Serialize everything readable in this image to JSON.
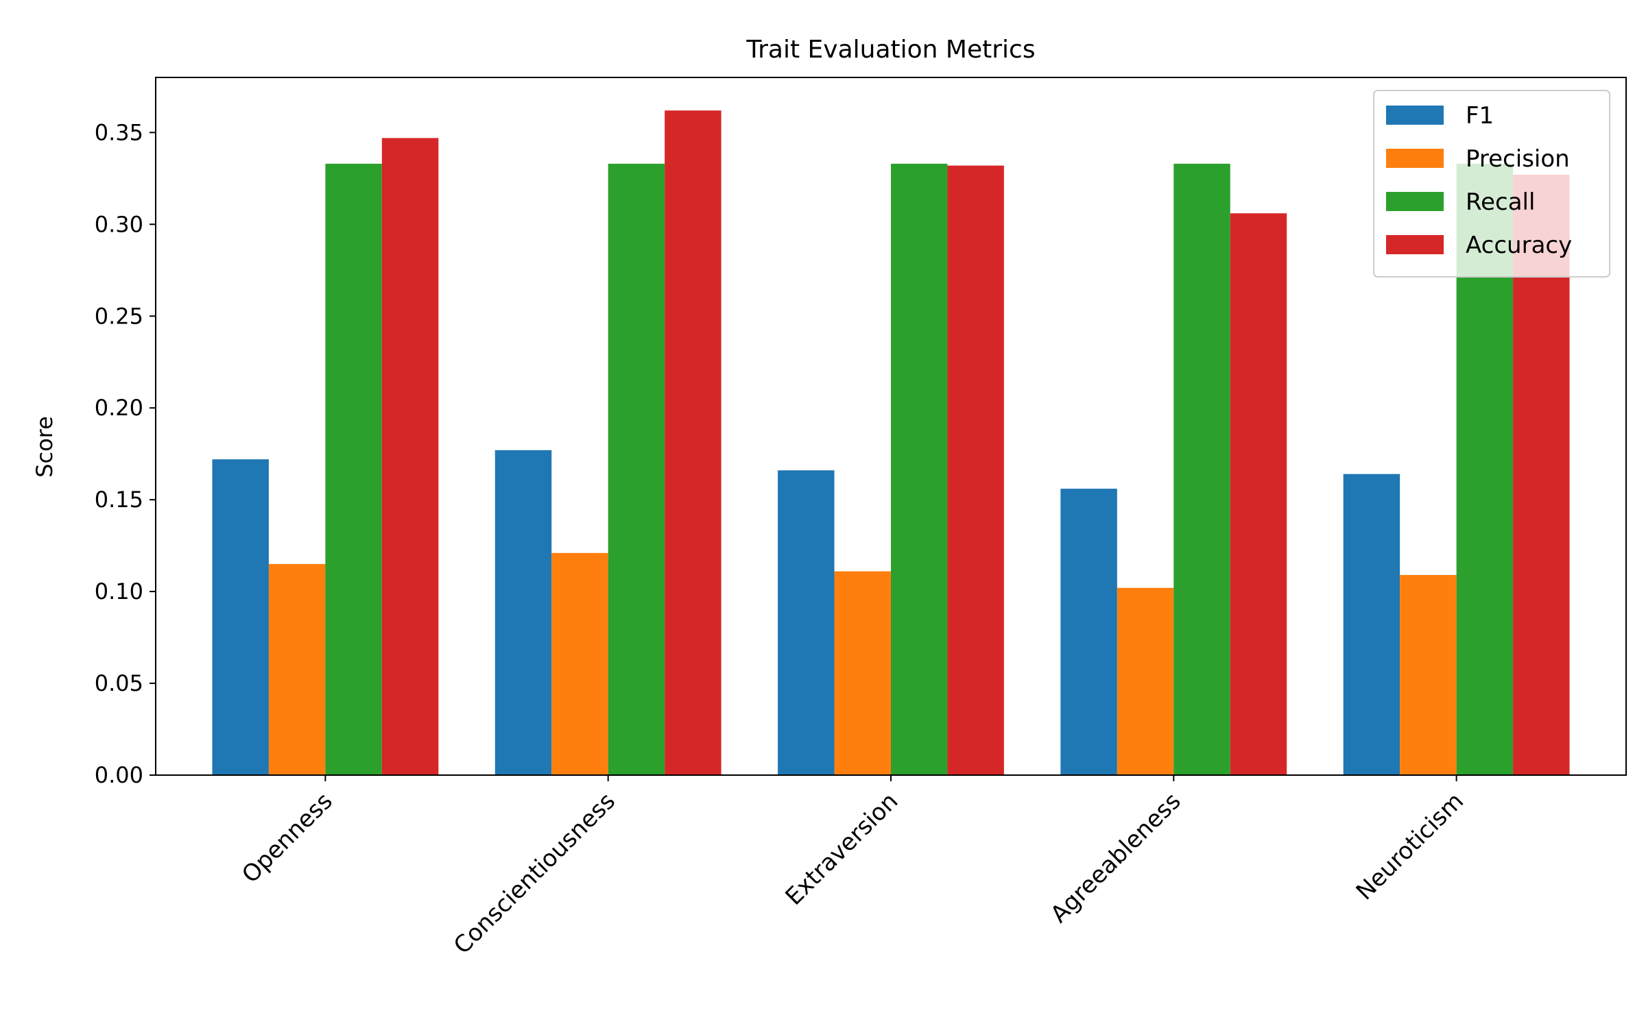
{
  "chart_data": {
    "type": "bar",
    "title": "Trait Evaluation Metrics",
    "xlabel": "",
    "ylabel": "Score",
    "categories": [
      "Openness",
      "Conscientiousness",
      "Extraversion",
      "Agreeableness",
      "Neuroticism"
    ],
    "series": [
      {
        "name": "F1",
        "color": "#1f77b4",
        "values": [
          0.172,
          0.177,
          0.166,
          0.156,
          0.164
        ]
      },
      {
        "name": "Precision",
        "color": "#ff7f0e",
        "values": [
          0.115,
          0.121,
          0.111,
          0.102,
          0.109
        ]
      },
      {
        "name": "Recall",
        "color": "#2ca02c",
        "values": [
          0.333,
          0.333,
          0.333,
          0.333,
          0.333
        ]
      },
      {
        "name": "Accuracy",
        "color": "#d62728",
        "values": [
          0.347,
          0.362,
          0.332,
          0.306,
          0.327
        ]
      }
    ],
    "ylim": [
      0,
      0.38
    ],
    "yticks": [
      "0.00",
      "0.05",
      "0.10",
      "0.15",
      "0.20",
      "0.25",
      "0.30",
      "0.35"
    ],
    "grid": false,
    "legend_position": "top-right"
  }
}
